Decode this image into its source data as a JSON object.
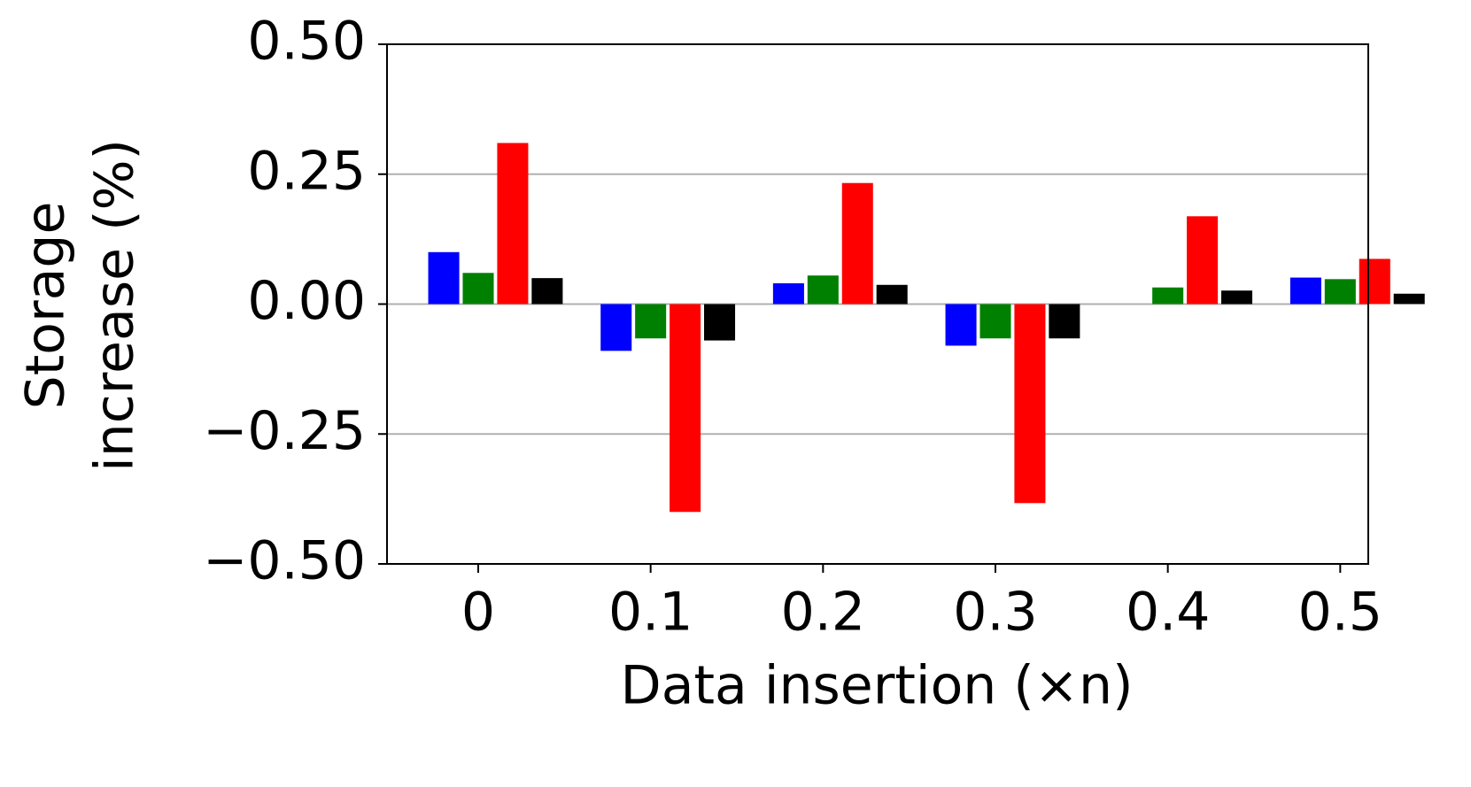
{
  "chart_data": {
    "type": "bar",
    "xlabel": "Data insertion (×n)",
    "ylabel": [
      "Storage",
      "increase (%)"
    ],
    "categories": [
      "0",
      "0.1",
      "0.2",
      "0.3",
      "0.4",
      "0.5"
    ],
    "series": [
      {
        "color": "#0000ff",
        "values": [
          0.1,
          -0.09,
          0.04,
          -0.08,
          0,
          0.051
        ]
      },
      {
        "color": "#008000",
        "values": [
          0.06,
          -0.066,
          0.055,
          -0.066,
          0.032,
          0.048
        ]
      },
      {
        "color": "#ff0000",
        "values": [
          0.31,
          -0.4,
          0.233,
          -0.383,
          0.169,
          0.087
        ]
      },
      {
        "color": "#000000",
        "values": [
          0.05,
          -0.07,
          0.037,
          -0.066,
          0.026,
          0.02
        ]
      }
    ],
    "ylim": [
      -0.5,
      0.5
    ],
    "yticks": [
      {
        "value": -0.5,
        "label": "−0.50"
      },
      {
        "value": -0.25,
        "label": "−0.25"
      },
      {
        "value": 0,
        "label": "0.00"
      },
      {
        "value": 0.25,
        "label": "0.25"
      },
      {
        "value": 0.5,
        "label": "0.50"
      }
    ],
    "grid": true
  }
}
